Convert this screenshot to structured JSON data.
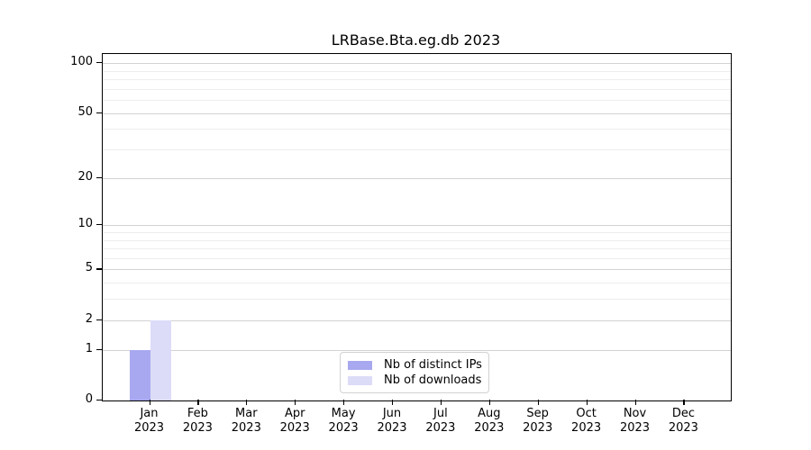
{
  "chart_data": {
    "type": "bar",
    "title": "LRBase.Bta.eg.db 2023",
    "x_year": "2023",
    "categories": [
      "Jan",
      "Feb",
      "Mar",
      "Apr",
      "May",
      "Jun",
      "Jul",
      "Aug",
      "Sep",
      "Oct",
      "Nov",
      "Dec"
    ],
    "series": [
      {
        "name": "Nb of distinct IPs",
        "color": "#a8a8f0",
        "values": [
          1,
          0,
          0,
          0,
          0,
          0,
          0,
          0,
          0,
          0,
          0,
          0
        ]
      },
      {
        "name": "Nb of downloads",
        "color": "#dcdcf8",
        "values": [
          2,
          0,
          0,
          0,
          0,
          0,
          0,
          0,
          0,
          0,
          0,
          0
        ]
      }
    ],
    "y_scale": "log10(1+value)",
    "ylim": [
      0,
      113
    ],
    "y_major_ticks": [
      0,
      1,
      2,
      5,
      10,
      20,
      50,
      100
    ],
    "y_minor_gridlines": [
      3,
      4,
      6,
      7,
      8,
      9,
      30,
      40,
      60,
      70,
      80,
      90
    ],
    "grid": "horizontal",
    "legend_position": "bottom-center",
    "colors": {
      "axis": "#000000",
      "major_grid": "#d2d2d2",
      "minor_grid": "#ededed",
      "background": "#ffffff"
    }
  }
}
